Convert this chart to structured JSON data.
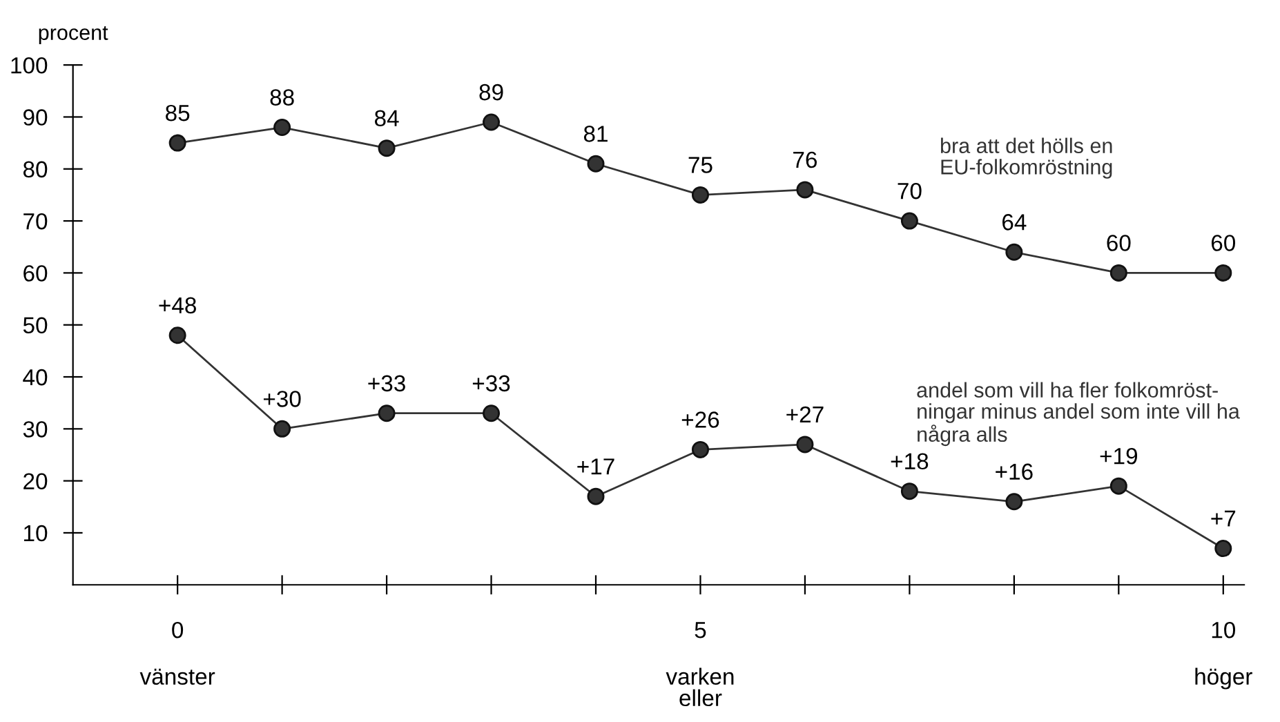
{
  "chart_data": {
    "type": "line",
    "ylabel": "procent",
    "x": [
      0,
      1,
      2,
      3,
      4,
      5,
      6,
      7,
      8,
      9,
      10
    ],
    "xlim": [
      -1,
      10.2
    ],
    "ylim": [
      0,
      100
    ],
    "xticks": [
      {
        "value": 0,
        "label": "0"
      },
      {
        "value": 1,
        "label": null
      },
      {
        "value": 2,
        "label": null
      },
      {
        "value": 3,
        "label": null
      },
      {
        "value": 4,
        "label": null
      },
      {
        "value": 5,
        "label": "5"
      },
      {
        "value": 6,
        "label": null
      },
      {
        "value": 7,
        "label": null
      },
      {
        "value": 8,
        "label": null
      },
      {
        "value": 9,
        "label": null
      },
      {
        "value": 10,
        "label": "10"
      }
    ],
    "yticks": [
      10,
      20,
      30,
      40,
      50,
      60,
      70,
      80,
      90,
      100
    ],
    "series": [
      {
        "name": "bra att det hölls en\nEU-folkomröstning",
        "color": "#333333",
        "values": [
          85,
          88,
          84,
          89,
          81,
          75,
          76,
          70,
          64,
          60,
          60
        ],
        "value_labels": [
          "85",
          "88",
          "84",
          "89",
          "81",
          "75",
          "76",
          "70",
          "64",
          "60",
          "60"
        ]
      },
      {
        "name": "andel som vill ha fler folkomröst-\nningar minus andel som inte vill ha\nnågra alls",
        "color": "#333333",
        "values": [
          48,
          30,
          33,
          33,
          17,
          26,
          27,
          18,
          16,
          19,
          7
        ],
        "value_labels": [
          "+48",
          "+30",
          "+33",
          "+33",
          "+17",
          "+26",
          "+27",
          "+18",
          "+16",
          "+19",
          "+7"
        ]
      }
    ],
    "marker": "circle",
    "line_style": "solid",
    "grid": false,
    "legend": false,
    "annotations": [
      "vänster",
      "varken\neller",
      "höger"
    ]
  }
}
